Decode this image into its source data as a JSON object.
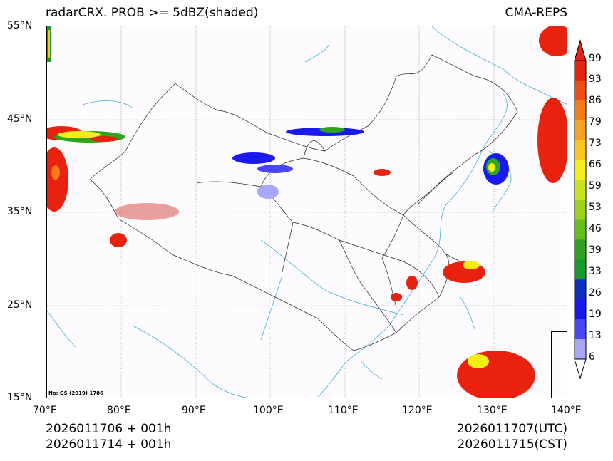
{
  "header": {
    "title_left": "radarCRX. PROB >= 5dBZ(shaded)",
    "title_right": "CMA-REPS"
  },
  "map": {
    "lat_labels": [
      "55°N",
      "45°N",
      "35°N",
      "25°N",
      "15°N"
    ],
    "lat_values": [
      55,
      45,
      35,
      25,
      15
    ],
    "lon_labels": [
      "70°E",
      "80°E",
      "90°E",
      "100°E",
      "110°E",
      "120°E",
      "130°E",
      "140°E"
    ],
    "lon_values": [
      70,
      80,
      90,
      100,
      110,
      120,
      130,
      140
    ],
    "review_number": "No: GS (2019) 1786"
  },
  "colorbar": {
    "labels": [
      "99",
      "93",
      "86",
      "79",
      "73",
      "66",
      "59",
      "53",
      "46",
      "39",
      "33",
      "26",
      "19",
      "13",
      "6"
    ],
    "colors": [
      "#e8220f",
      "#f04e10",
      "#f77c16",
      "#fba320",
      "#fcc41d",
      "#f4ee18",
      "#cbe31c",
      "#9cd21a",
      "#62bf1c",
      "#2fa51e",
      "#159a2c",
      "#0a2fc0",
      "#1a1af0",
      "#4747f7",
      "#a8a8fb"
    ]
  },
  "footer": {
    "init_utc": "2026011706  +  001h",
    "init_cst": "2026011714  +  001h",
    "valid_utc": "2026011707(UTC)",
    "valid_cst": "2026011715(CST)"
  }
}
